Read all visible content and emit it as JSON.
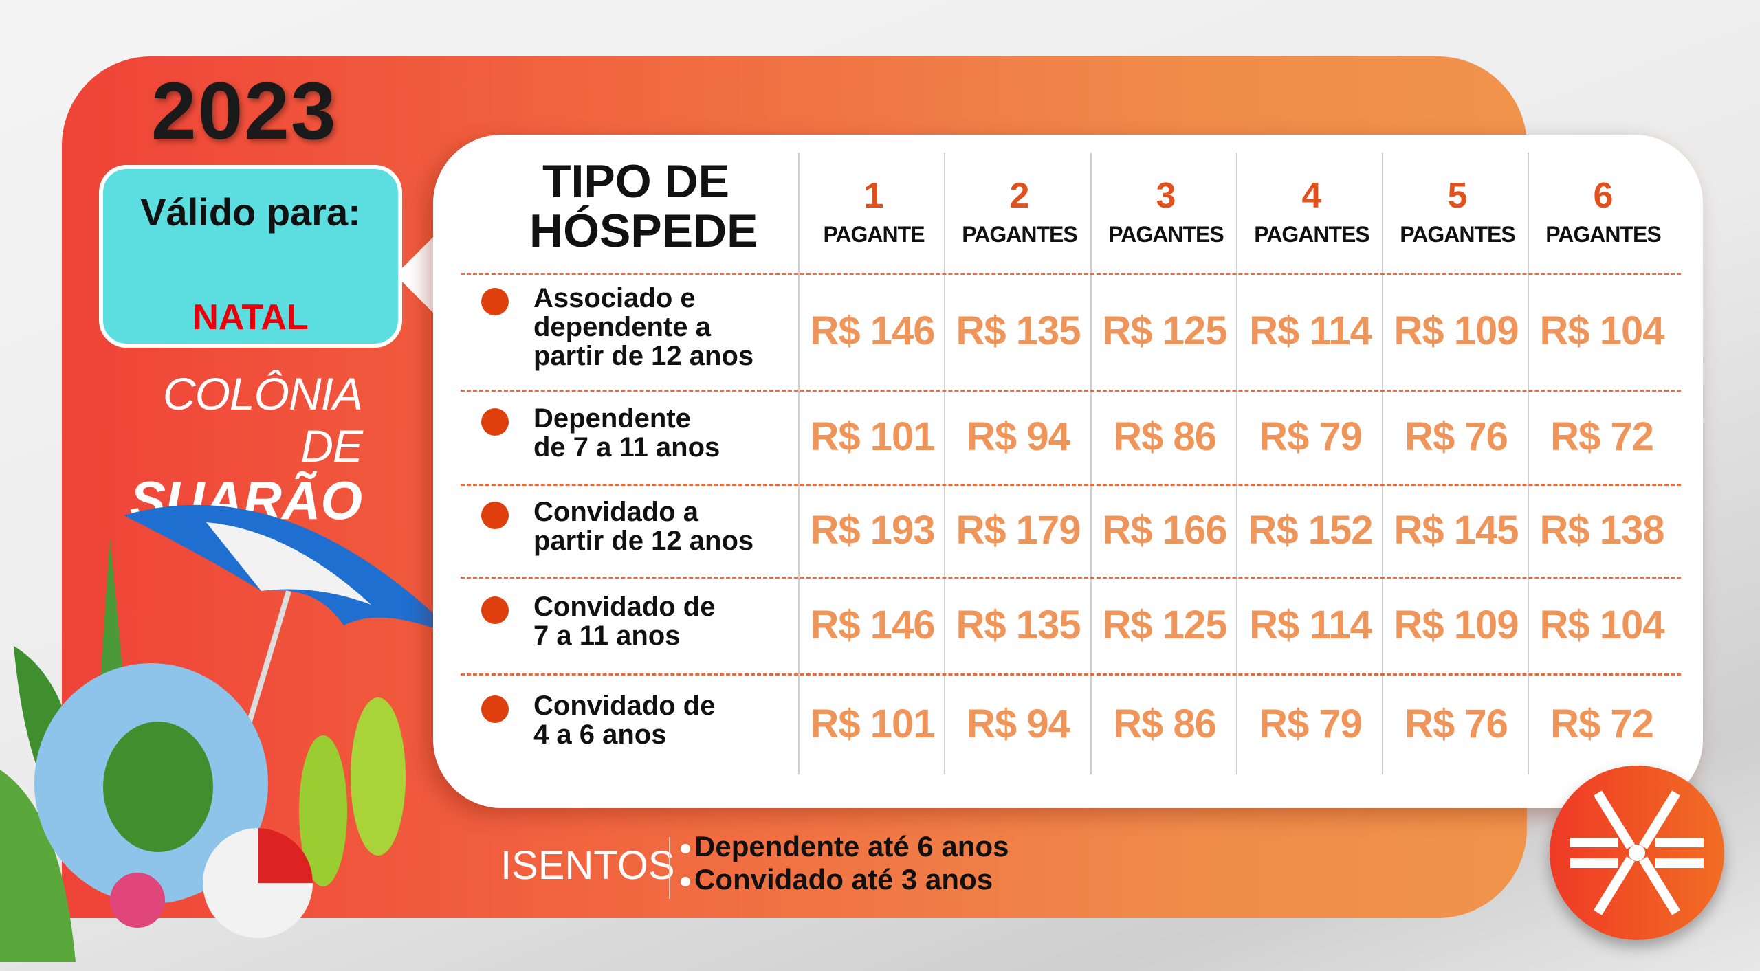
{
  "year": "2023",
  "valid_for": {
    "label": "Válido para:",
    "value": "NATAL"
  },
  "brand": {
    "line1": "COLÔNIA DE",
    "line2": "SUARÃO"
  },
  "table": {
    "header_title": [
      "TIPO DE",
      "HÓSPEDE"
    ],
    "columns": [
      {
        "number": "1",
        "label": "PAGANTE"
      },
      {
        "number": "2",
        "label": "PAGANTES"
      },
      {
        "number": "3",
        "label": "PAGANTES"
      },
      {
        "number": "4",
        "label": "PAGANTES"
      },
      {
        "number": "5",
        "label": "PAGANTES"
      },
      {
        "number": "6",
        "label": "PAGANTES"
      }
    ],
    "rows": [
      {
        "label": [
          "Associado e",
          "dependente a",
          "partir de 12 anos"
        ],
        "prices": [
          "R$ 146",
          "R$ 135",
          "R$ 125",
          "R$ 114",
          "R$ 109",
          "R$ 104"
        ]
      },
      {
        "label": [
          "Dependente",
          "de 7 a 11 anos"
        ],
        "prices": [
          "R$ 101",
          "R$ 94",
          "R$ 86",
          "R$ 79",
          "R$ 76",
          "R$ 72"
        ]
      },
      {
        "label": [
          "Convidado a",
          "partir de 12 anos"
        ],
        "prices": [
          "R$ 193",
          "R$ 179",
          "R$ 166",
          "R$ 152",
          "R$ 145",
          "R$ 138"
        ]
      },
      {
        "label": [
          "Convidado de",
          "7 a 11 anos"
        ],
        "prices": [
          "R$ 146",
          "R$ 135",
          "R$ 125",
          "R$ 114",
          "R$ 109",
          "R$ 104"
        ]
      },
      {
        "label": [
          "Convidado de",
          "4 a 6 anos"
        ],
        "prices": [
          "R$ 101",
          "R$ 94",
          "R$ 86",
          "R$ 79",
          "R$ 76",
          "R$ 72"
        ]
      }
    ]
  },
  "exempt": {
    "title": "ISENTOS",
    "items": [
      "Dependente até 6 anos",
      "Convidado até 3 anos"
    ]
  },
  "colors": {
    "panel": "#ef4338",
    "accent": "#e2511c",
    "price": "#f0955a",
    "valid_box": "#5cdde0",
    "valid_value": "#e8000a"
  },
  "icons": {
    "logo": "sesc-snowflake-logo",
    "decor": "beach-umbrella-float-ball-flipflops"
  }
}
